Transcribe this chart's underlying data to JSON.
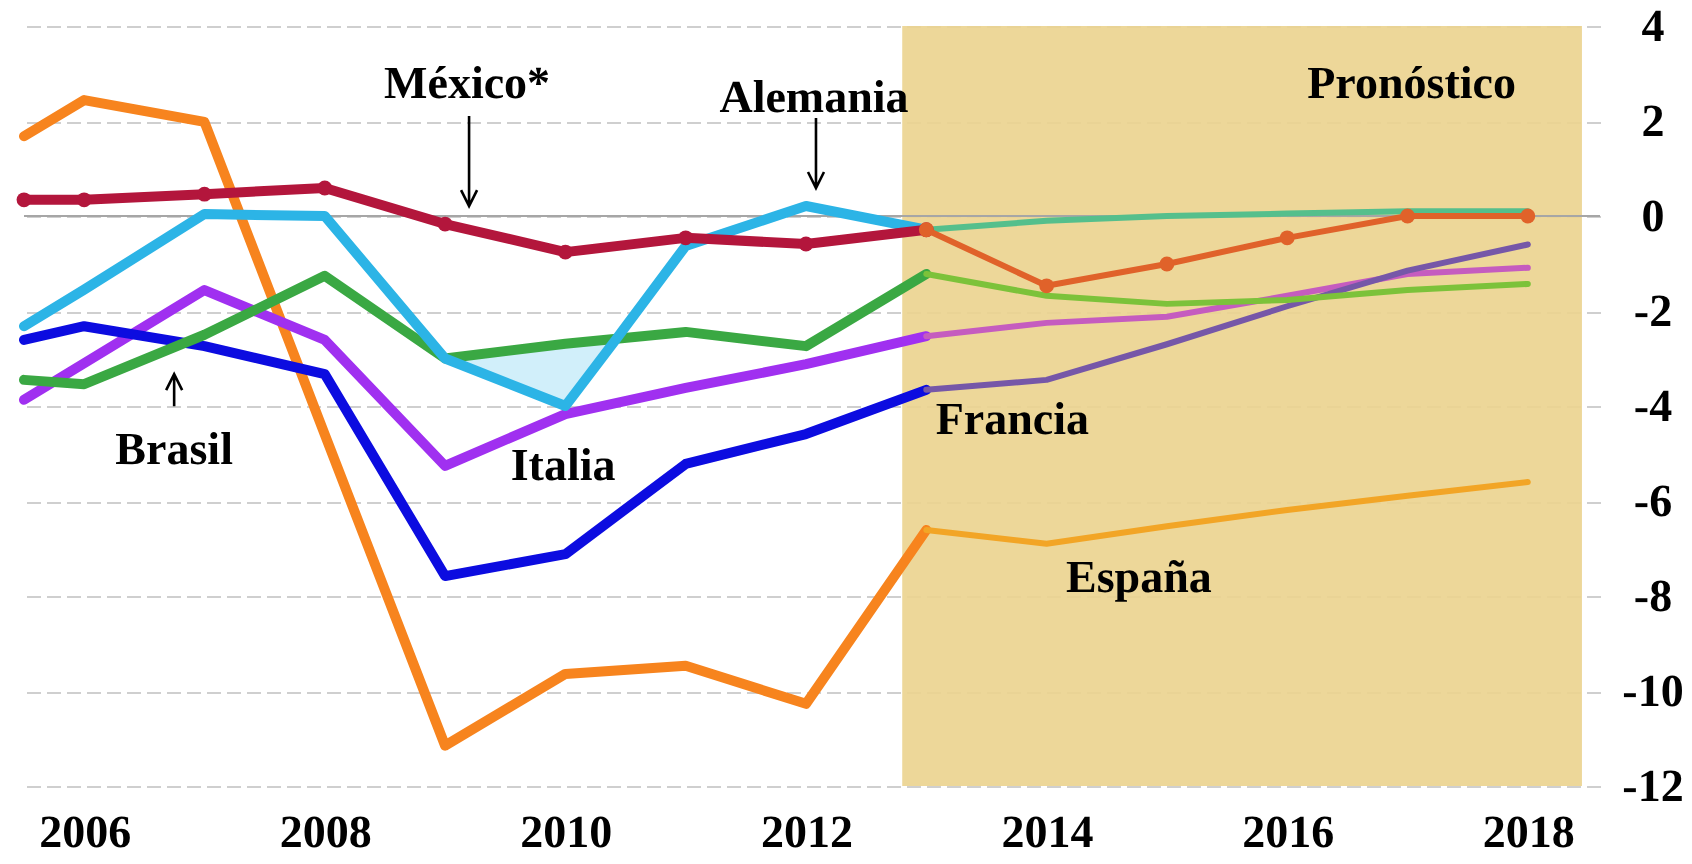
{
  "chart_data": {
    "type": "line",
    "x": [
      2005.5,
      2006,
      2007,
      2008,
      2009,
      2010,
      2011,
      2012,
      2013
    ],
    "series": [
      {
        "color": "#f7841e",
        "values": [
          1.68,
          2.44,
          1.98,
          -4.6,
          -11.15,
          -9.64,
          -9.47,
          -10.27,
          -6.61
        ]
      },
      {
        "name": "España",
        "color": "#f2a526",
        "x": [
          2013,
          2014,
          2015,
          2016,
          2017,
          2018
        ],
        "values": [
          -6.61,
          -6.9,
          -6.53,
          -6.19,
          -5.89,
          -5.6
        ]
      },
      {
        "name": "Italia",
        "color": "#a030f0",
        "values": [
          -3.87,
          -3.1,
          -1.56,
          -2.61,
          -5.26,
          -4.17,
          -3.62,
          -3.12,
          -2.53
        ]
      },
      {
        "color": "#c55cbf",
        "x": [
          2013,
          2014,
          2015,
          2016,
          2017,
          2018
        ],
        "values": [
          -2.53,
          -2.25,
          -2.12,
          -1.68,
          -1.22,
          -1.09
        ]
      },
      {
        "color": "#0c0ce0",
        "values": [
          -2.61,
          -2.32,
          -2.74,
          -3.33,
          -7.58,
          -7.12,
          -5.22,
          -4.59,
          -3.66
        ]
      },
      {
        "name": "Francia",
        "color": "#7657a8",
        "x": [
          2013,
          2014,
          2015,
          2016,
          2017,
          2018
        ],
        "values": [
          -3.66,
          -3.45,
          -2.7,
          -1.9,
          -1.15,
          -0.6
        ]
      },
      {
        "name": "Brasil",
        "color": "#3aa843",
        "values": [
          -3.45,
          -3.54,
          -2.5,
          -1.26,
          -3.0,
          -2.69,
          -2.44,
          -2.74,
          -1.22
        ]
      },
      {
        "color": "#7cc23a",
        "x": [
          2013,
          2014,
          2015,
          2016,
          2017,
          2018
        ],
        "values": [
          -1.22,
          -1.68,
          -1.85,
          -1.77,
          -1.56,
          -1.43
        ]
      },
      {
        "name": "Alemania",
        "color": "#2cb4e6",
        "x": [
          2005.5,
          2006,
          2007,
          2008,
          2009,
          2010,
          2010.42,
          2011,
          2012,
          2013
        ],
        "values": [
          -2.32,
          -1.55,
          0.04,
          0.0,
          -3.0,
          -4.0,
          -2.6,
          -0.63,
          0.21,
          -0.29
        ],
        "lower": [
          null,
          null,
          null,
          null,
          -3.0,
          -4.0,
          -2.6,
          null,
          null,
          null
        ],
        "upper": [
          null,
          null,
          null,
          null,
          -3.0,
          -2.69,
          -2.6,
          null,
          null,
          null
        ]
      },
      {
        "color": "#55bf8c",
        "x": [
          2013,
          2014,
          2015,
          2016,
          2017,
          2018
        ],
        "values": [
          -0.29,
          -0.1,
          0.0,
          0.05,
          0.1,
          0.1
        ]
      },
      {
        "name": "México*",
        "color": "#b3163c",
        "marker": "circle",
        "values": [
          0.34,
          0.34,
          0.46,
          0.59,
          -0.17,
          -0.76,
          -0.46,
          -0.59,
          -0.29
        ]
      },
      {
        "color": "#e0622a",
        "marker": "circle",
        "x": [
          2013,
          2014,
          2015,
          2016,
          2017,
          2018
        ],
        "values": [
          -0.29,
          -1.47,
          -1.01,
          -0.46,
          0.0,
          0.0
        ]
      }
    ],
    "xlim": [
      2005.5,
      2018.6
    ],
    "xticks": [
      2006,
      2008,
      2010,
      2012,
      2014,
      2016,
      2018
    ],
    "ylim": [
      -12,
      4
    ],
    "yticks": [
      -12,
      -10,
      -8,
      -6,
      -4,
      -2,
      0,
      2,
      4
    ],
    "grid": "y",
    "bands": [
      {
        "axis": "x",
        "from": 2012.8,
        "to": 2018.45,
        "label": "Pronóstico",
        "color": "#ebd490"
      }
    ],
    "ref_lines": [
      {
        "axis": "y",
        "value": 0,
        "color": "#a6a6a6"
      }
    ]
  }
}
